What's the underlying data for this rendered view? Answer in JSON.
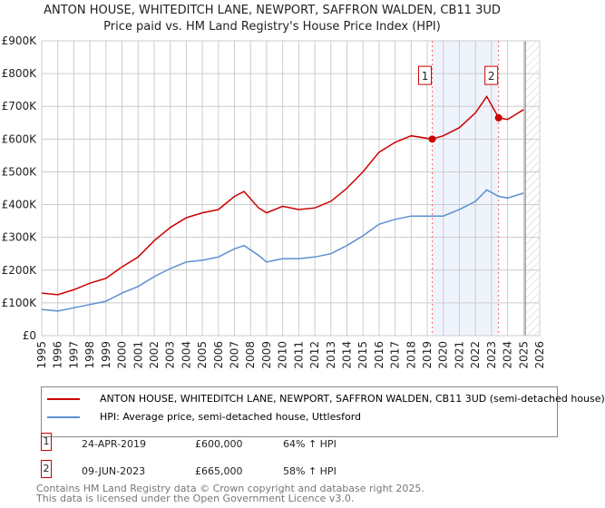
{
  "chart_data": {
    "type": "line",
    "title": "ANTON HOUSE, WHITEDITCH LANE, NEWPORT, SAFFRON WALDEN, CB11 3UD",
    "subtitle": "Price paid vs. HM Land Registry's House Price Index (HPI)",
    "xlim": [
      1995,
      2026
    ],
    "ylim": [
      0,
      900000
    ],
    "x_ticks": [
      "1995",
      "1996",
      "1997",
      "1998",
      "1999",
      "2000",
      "2001",
      "2002",
      "2003",
      "2004",
      "2005",
      "2006",
      "2007",
      "2008",
      "2009",
      "2010",
      "2011",
      "2012",
      "2013",
      "2014",
      "2015",
      "2016",
      "2017",
      "2018",
      "2019",
      "2020",
      "2021",
      "2022",
      "2023",
      "2024",
      "2025",
      "2026"
    ],
    "y_ticks": [
      {
        "v": 0,
        "label": "£0"
      },
      {
        "v": 100000,
        "label": "£100K"
      },
      {
        "v": 200000,
        "label": "£200K"
      },
      {
        "v": 300000,
        "label": "£300K"
      },
      {
        "v": 400000,
        "label": "£400K"
      },
      {
        "v": 500000,
        "label": "£500K"
      },
      {
        "v": 600000,
        "label": "£600K"
      },
      {
        "v": 700000,
        "label": "£700K"
      },
      {
        "v": 800000,
        "label": "£800K"
      },
      {
        "v": 900000,
        "label": "£900K"
      }
    ],
    "grid": true,
    "series": [
      {
        "name": "ANTON HOUSE, WHITEDITCH LANE, NEWPORT, SAFFRON WALDEN, CB11 3UD (semi-detached house)",
        "color": "#cc0000",
        "x": [
          1995,
          1996,
          1997,
          1998,
          1999,
          2000,
          2001,
          2002,
          2003,
          2004,
          2005,
          2006,
          2007,
          2007.6,
          2008.5,
          2009,
          2010,
          2011,
          2012,
          2013,
          2014,
          2015,
          2016,
          2017,
          2018,
          2019.3,
          2020,
          2021,
          2022,
          2022.7,
          2023.45,
          2024,
          2025
        ],
        "y": [
          130000,
          125000,
          140000,
          160000,
          175000,
          210000,
          240000,
          290000,
          330000,
          360000,
          375000,
          385000,
          425000,
          440000,
          390000,
          375000,
          395000,
          385000,
          390000,
          410000,
          450000,
          500000,
          560000,
          590000,
          610000,
          600000,
          610000,
          635000,
          680000,
          730000,
          665000,
          660000,
          690000
        ]
      },
      {
        "name": "HPI: Average price, semi-detached house, Uttlesford",
        "color": "#5b8fd0",
        "x": [
          1995,
          1996,
          1997,
          1998,
          1999,
          2000,
          2001,
          2002,
          2003,
          2004,
          2005,
          2006,
          2007,
          2007.6,
          2008.5,
          2009,
          2010,
          2011,
          2012,
          2013,
          2014,
          2015,
          2016,
          2017,
          2018,
          2019.3,
          2020,
          2021,
          2022,
          2022.7,
          2023.45,
          2024,
          2025
        ],
        "y": [
          80000,
          75000,
          85000,
          95000,
          105000,
          130000,
          150000,
          180000,
          205000,
          225000,
          230000,
          240000,
          265000,
          275000,
          245000,
          225000,
          235000,
          235000,
          240000,
          250000,
          275000,
          305000,
          340000,
          355000,
          365000,
          365000,
          365000,
          385000,
          410000,
          445000,
          425000,
          420000,
          435000
        ]
      }
    ],
    "annotations": [
      {
        "label": "1",
        "x": 2019.31,
        "y": 600000
      },
      {
        "label": "2",
        "x": 2023.44,
        "y": 665000
      }
    ],
    "legend_placement": "bottom"
  },
  "transactions": [
    {
      "num": "1",
      "date": "24-APR-2019",
      "price": "£600,000",
      "hpi": "64% ↑ HPI"
    },
    {
      "num": "2",
      "date": "09-JUN-2023",
      "price": "£665,000",
      "hpi": "58% ↑ HPI"
    }
  ],
  "footer": [
    "Contains HM Land Registry data © Crown copyright and database right 2025.",
    "This data is licensed under the Open Government Licence v3.0."
  ]
}
